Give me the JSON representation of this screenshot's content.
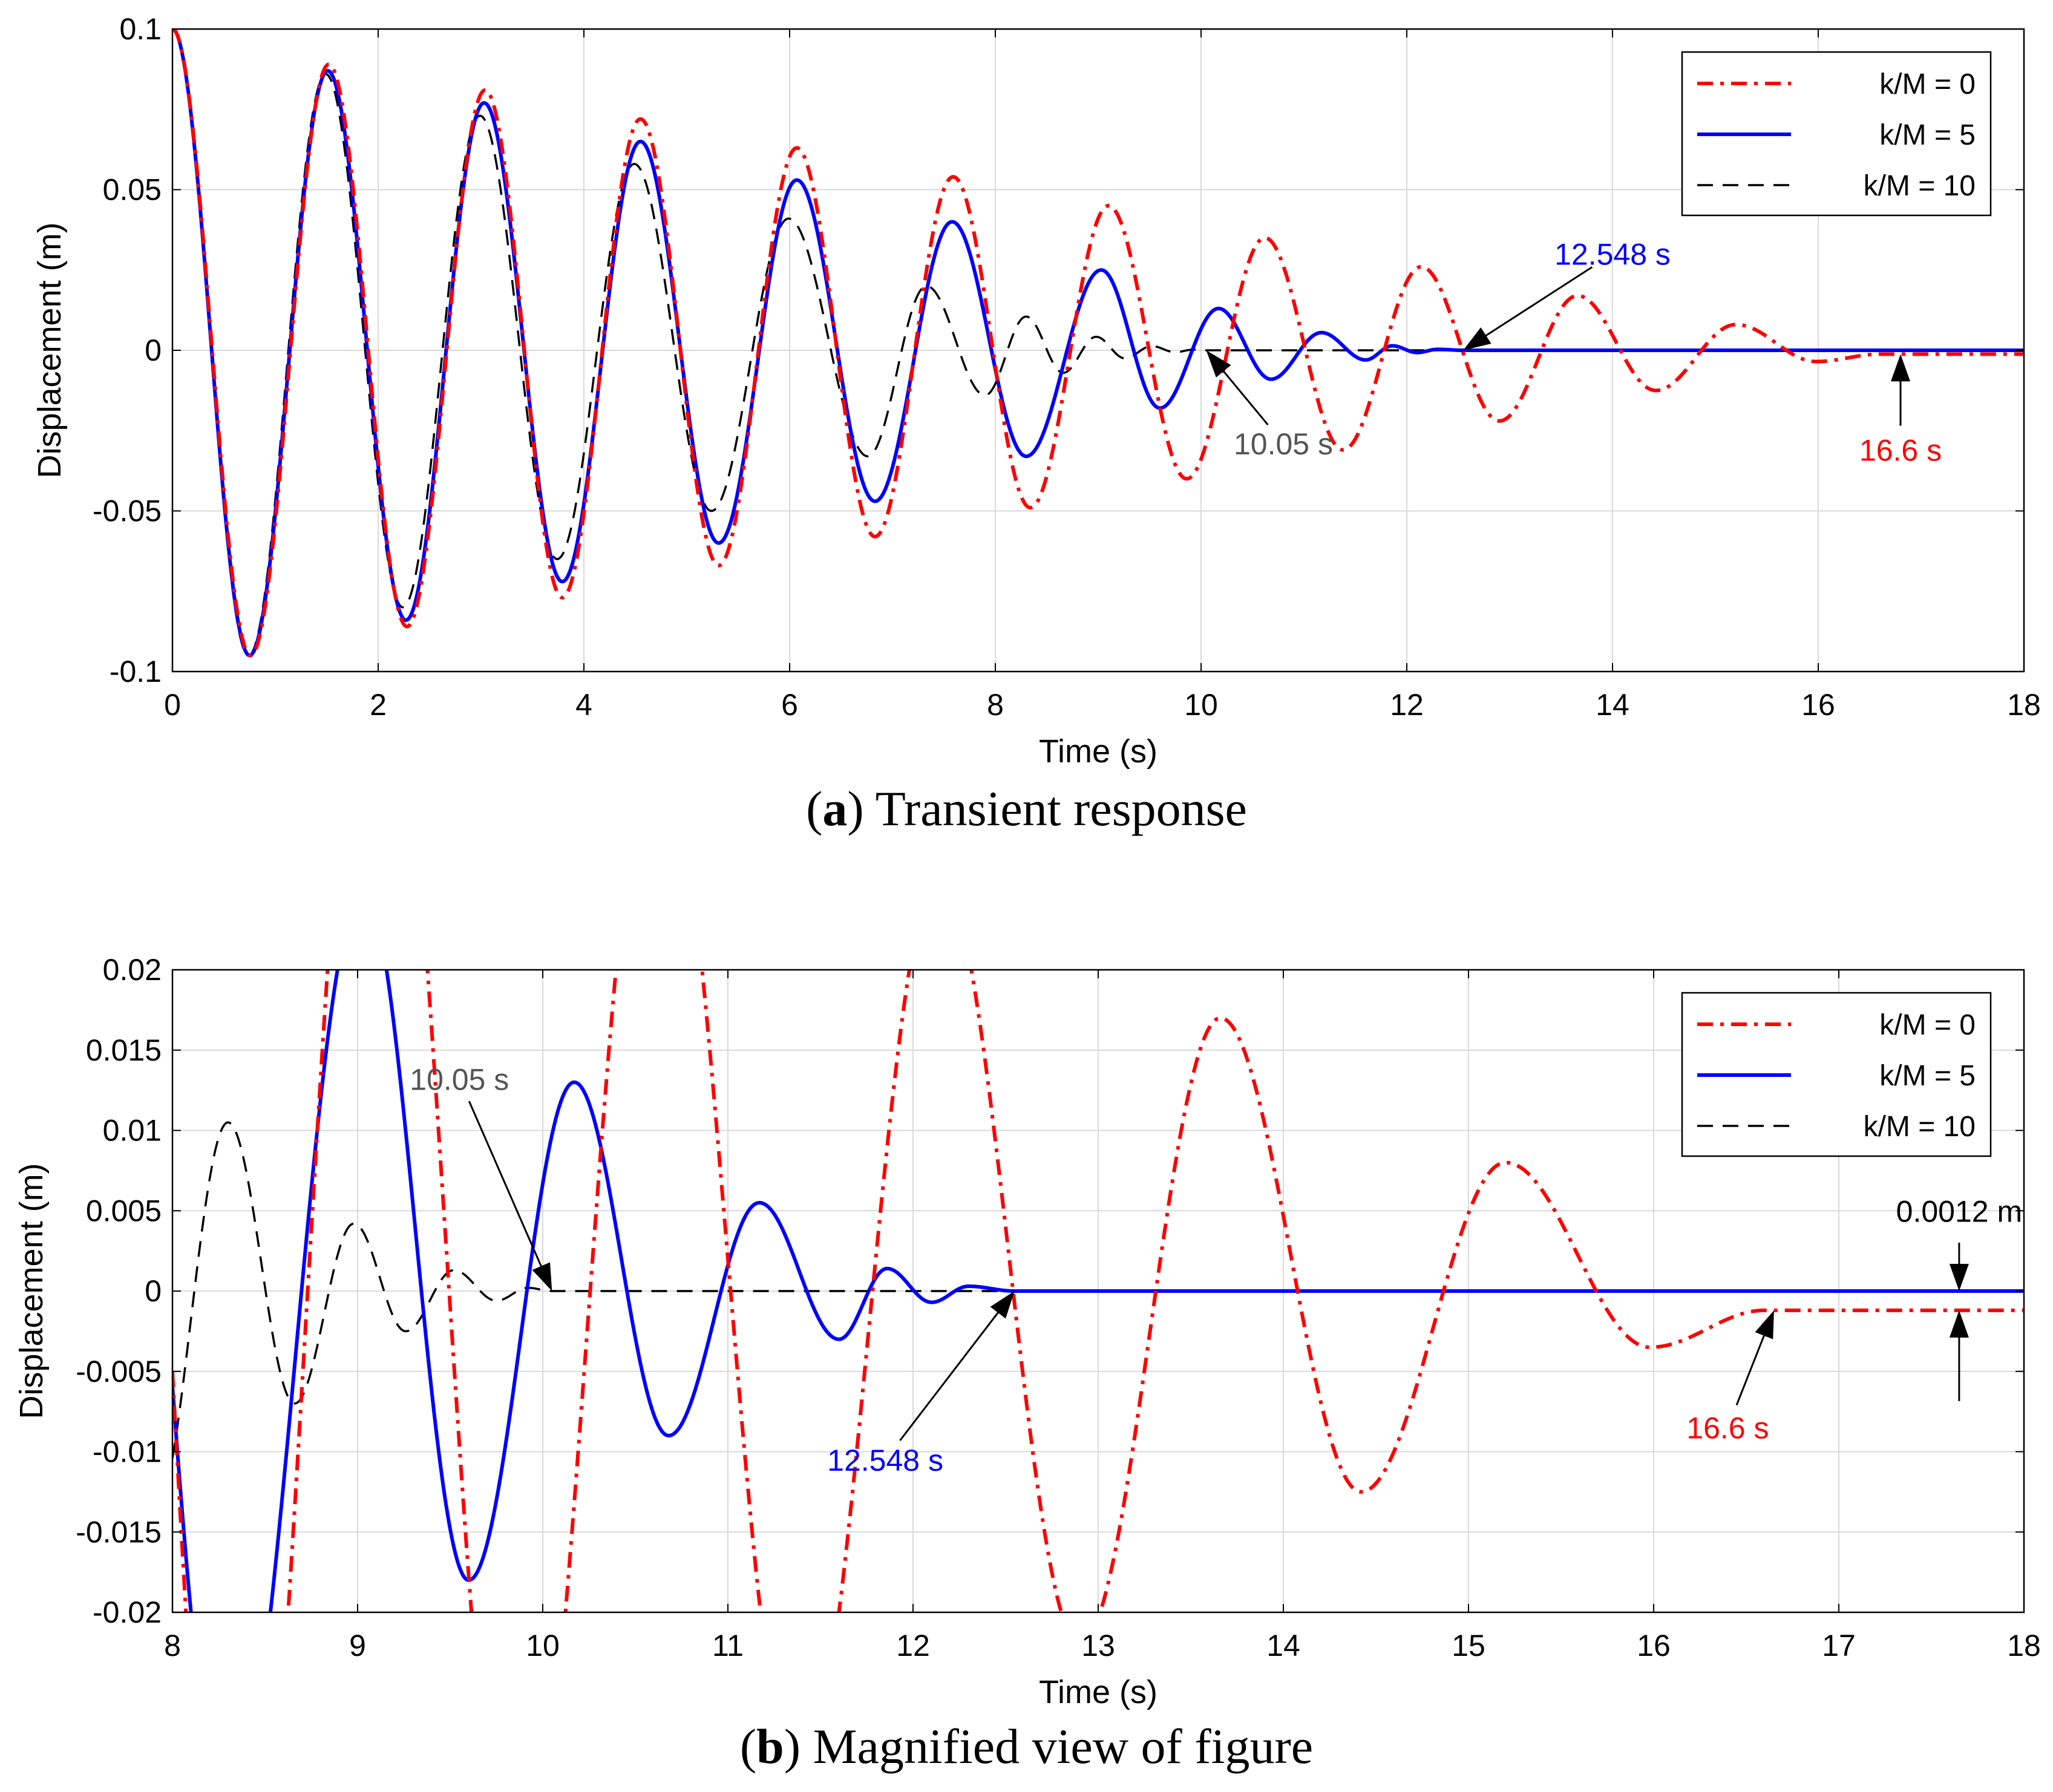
{
  "colors": {
    "k0": "#ff0000",
    "k5": "#0000ff",
    "k10": "#000000",
    "grid": "#d9d9d9",
    "ann_gray": "#555555"
  },
  "chart_data": [
    {
      "type": "line",
      "panel": "a",
      "caption_letter": "a",
      "caption_text": "Transient response",
      "xlabel": "Time (s)",
      "ylabel": "Displacement (m)",
      "xlim": [
        0,
        18
      ],
      "ylim": [
        -0.1,
        0.1
      ],
      "xticks": [
        0,
        2,
        4,
        6,
        8,
        10,
        12,
        14,
        16,
        18
      ],
      "xtick_labels": [
        "0",
        "2",
        "4",
        "6",
        "8",
        "10",
        "12",
        "14",
        "16",
        "18"
      ],
      "yticks": [
        -0.1,
        -0.05,
        0,
        0.05,
        0.1
      ],
      "ytick_labels": [
        "-0.1",
        "-0.05",
        "0",
        "0.05",
        "0.1"
      ],
      "grid": true,
      "legend_position": "top-right",
      "series": [
        {
          "name": "k/M = 0",
          "style": "dashdot",
          "color_key": "k0",
          "model": {
            "period": 1.515,
            "peaks": [
              [
                0,
                0.1
              ],
              [
                0.76,
                -0.095
              ],
              [
                1.52,
                0.089
              ],
              [
                2.28,
                -0.086
              ],
              [
                3.04,
                0.081
              ],
              [
                3.79,
                -0.077
              ],
              [
                4.55,
                0.072
              ],
              [
                5.31,
                -0.067
              ],
              [
                6.07,
                0.063
              ],
              [
                6.83,
                -0.058
              ],
              [
                7.59,
                0.054
              ],
              [
                8.34,
                -0.049
              ],
              [
                9.1,
                0.045
              ],
              [
                9.86,
                -0.04
              ],
              [
                10.62,
                0.035
              ],
              [
                11.38,
                -0.031
              ],
              [
                12.14,
                0.026
              ],
              [
                12.9,
                -0.022
              ],
              [
                13.66,
                0.017
              ],
              [
                14.42,
                -0.0125
              ],
              [
                15.2,
                0.008
              ],
              [
                15.98,
                -0.0035
              ],
              [
                16.6,
                -0.0012
              ],
              [
                18,
                -0.0012
              ]
            ]
          }
        },
        {
          "name": "k/M = 5",
          "style": "solid",
          "color_key": "k5",
          "model": {
            "period": 1.5,
            "peaks": [
              [
                0,
                0.1
              ],
              [
                0.75,
                -0.095
              ],
              [
                1.51,
                0.087
              ],
              [
                2.27,
                -0.084
              ],
              [
                3.03,
                0.077
              ],
              [
                3.79,
                -0.072
              ],
              [
                4.55,
                0.065
              ],
              [
                5.31,
                -0.06
              ],
              [
                6.07,
                0.053
              ],
              [
                6.83,
                -0.047
              ],
              [
                7.58,
                0.04
              ],
              [
                8.3,
                -0.033
              ],
              [
                9.03,
                0.025
              ],
              [
                9.6,
                -0.018
              ],
              [
                10.17,
                0.013
              ],
              [
                10.68,
                -0.009
              ],
              [
                11.17,
                0.0055
              ],
              [
                11.6,
                -0.003
              ],
              [
                11.86,
                0.0014
              ],
              [
                12.1,
                -0.0007
              ],
              [
                12.3,
                0.0003
              ],
              [
                12.548,
                0
              ],
              [
                18,
                0
              ]
            ]
          }
        },
        {
          "name": "k/M = 10",
          "style": "dashed",
          "color_key": "k10",
          "model": {
            "period": 1.48,
            "peaks": [
              [
                0,
                0.1
              ],
              [
                0.74,
                -0.095
              ],
              [
                1.49,
                0.086
              ],
              [
                2.24,
                -0.08
              ],
              [
                2.99,
                0.073
              ],
              [
                3.74,
                -0.065
              ],
              [
                4.49,
                0.058
              ],
              [
                5.24,
                -0.05
              ],
              [
                5.99,
                0.041
              ],
              [
                6.76,
                -0.033
              ],
              [
                7.33,
                0.02
              ],
              [
                7.9,
                -0.014
              ],
              [
                8.3,
                0.0105
              ],
              [
                8.66,
                -0.007
              ],
              [
                8.98,
                0.0042
              ],
              [
                9.26,
                -0.0025
              ],
              [
                9.52,
                0.0013
              ],
              [
                9.75,
                -0.0006
              ],
              [
                9.92,
                0.0002
              ],
              [
                10.05,
                0
              ],
              [
                18,
                0
              ]
            ]
          }
        }
      ],
      "annotations": [
        {
          "text": "12.548 s",
          "color_key": "k5",
          "x": 12.548,
          "y": 0,
          "label_x": 14.0,
          "label_y": 0.03,
          "arrow": "line"
        },
        {
          "text": "10.05 s",
          "color_key": "ann_gray",
          "x": 10.05,
          "y": 0,
          "label_x": 10.8,
          "label_y": -0.029,
          "arrow": "line"
        },
        {
          "text": "16.6 s",
          "color_key": "k0",
          "x": 16.8,
          "y": -0.0012,
          "label_x": 16.8,
          "label_y": -0.031,
          "arrow": "line"
        }
      ]
    },
    {
      "type": "line",
      "panel": "b",
      "caption_letter": "b",
      "caption_text": "Magnified view of figure",
      "xlabel": "Time (s)",
      "ylabel": "Displacement (m)",
      "xlim": [
        8,
        18
      ],
      "ylim": [
        -0.02,
        0.02
      ],
      "xticks": [
        8,
        9,
        10,
        11,
        12,
        13,
        14,
        15,
        16,
        17,
        18
      ],
      "xtick_labels": [
        "8",
        "9",
        "10",
        "11",
        "12",
        "13",
        "14",
        "15",
        "16",
        "17",
        "18"
      ],
      "yticks": [
        -0.02,
        -0.015,
        -0.01,
        -0.005,
        0,
        0.005,
        0.01,
        0.015,
        0.02
      ],
      "ytick_labels": [
        "-0.02",
        "-0.015",
        "-0.01",
        "-0.005",
        "0",
        "0.005",
        "0.01",
        "0.015",
        "0.02"
      ],
      "grid": true,
      "legend_position": "top-right",
      "series": [
        {
          "name": "k/M = 0",
          "style": "dashdot",
          "color_key": "k0"
        },
        {
          "name": "k/M = 5",
          "style": "solid",
          "color_key": "k5"
        },
        {
          "name": "k/M = 10",
          "style": "dashed",
          "color_key": "k10"
        }
      ],
      "annotations": [
        {
          "text": "10.05 s",
          "color_key": "ann_gray",
          "x": 10.05,
          "y": 0,
          "label_x": 9.55,
          "label_y": 0.0132,
          "arrow": "line"
        },
        {
          "text": "12.548 s",
          "color_key": "k5",
          "x": 12.548,
          "y": 0,
          "label_x": 11.85,
          "label_y": -0.0105,
          "arrow": "line"
        },
        {
          "text": "16.6 s",
          "color_key": "k0",
          "x": 16.65,
          "y": -0.0012,
          "label_x": 16.4,
          "label_y": -0.0085,
          "arrow": "line"
        },
        {
          "text": "0.0012 m",
          "color_key": "k10",
          "x": 17.65,
          "y": 0,
          "label_x": 17.65,
          "label_y": 0.005,
          "arrow": "dimension",
          "y2": -0.0012
        }
      ]
    }
  ]
}
